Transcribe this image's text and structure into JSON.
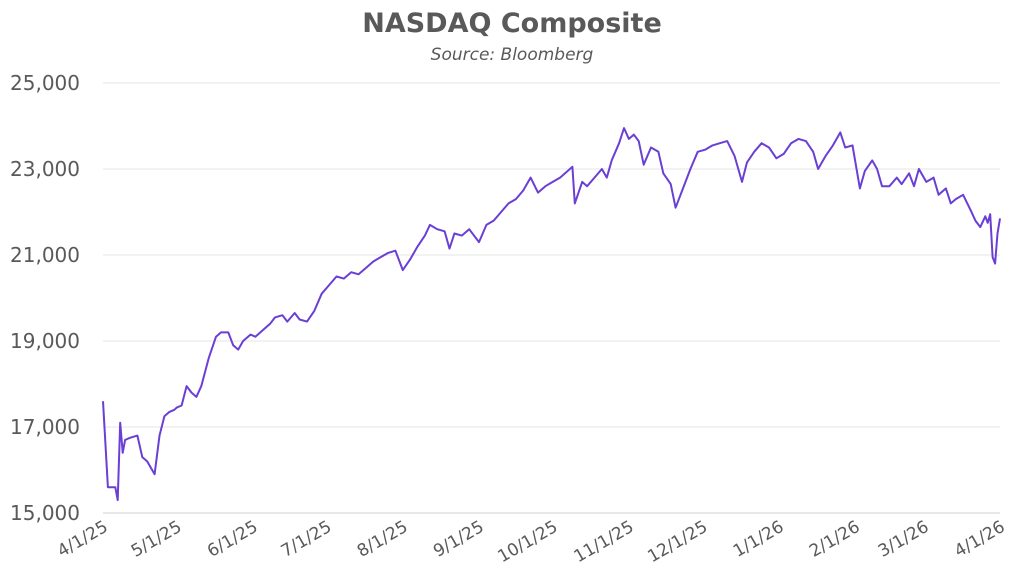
{
  "chart_data": {
    "type": "line",
    "title": "NASDAQ Composite",
    "subtitle": "Source: Bloomberg",
    "xlabel": "",
    "ylabel": "",
    "ylim": [
      15000,
      25000
    ],
    "yticks": [
      15000,
      17000,
      19000,
      21000,
      23000,
      25000
    ],
    "ytick_labels": [
      "15,000",
      "17,000",
      "19,000",
      "21,000",
      "23,000",
      "25,000"
    ],
    "xlim": [
      "2025-04-01",
      "2026-04-01"
    ],
    "xticks": [
      "2025-04-01",
      "2025-05-01",
      "2025-06-01",
      "2025-07-01",
      "2025-08-01",
      "2025-09-01",
      "2025-10-01",
      "2025-11-01",
      "2025-12-01",
      "2026-01-01",
      "2026-02-01",
      "2026-03-01",
      "2026-04-01"
    ],
    "xtick_labels": [
      "4/1/25",
      "5/1/25",
      "6/1/25",
      "7/1/25",
      "8/1/25",
      "9/1/25",
      "10/1/25",
      "11/1/25",
      "12/1/25",
      "1/1/26",
      "2/1/26",
      "3/1/26",
      "4/1/26"
    ],
    "grid": true,
    "line_color": "#6A3FD4",
    "series": [
      {
        "name": "",
        "points": [
          [
            "2025-04-01",
            17600
          ],
          [
            "2025-04-03",
            15600
          ],
          [
            "2025-04-04",
            15600
          ],
          [
            "2025-04-06",
            15600
          ],
          [
            "2025-04-07",
            15300
          ],
          [
            "2025-04-08",
            17100
          ],
          [
            "2025-04-09",
            16400
          ],
          [
            "2025-04-10",
            16700
          ],
          [
            "2025-04-12",
            16750
          ],
          [
            "2025-04-15",
            16800
          ],
          [
            "2025-04-17",
            16300
          ],
          [
            "2025-04-19",
            16200
          ],
          [
            "2025-04-22",
            15900
          ],
          [
            "2025-04-24",
            16800
          ],
          [
            "2025-04-26",
            17250
          ],
          [
            "2025-04-28",
            17350
          ],
          [
            "2025-04-30",
            17400
          ],
          [
            "2025-05-01",
            17450
          ],
          [
            "2025-05-03",
            17500
          ],
          [
            "2025-05-05",
            17950
          ],
          [
            "2025-05-07",
            17800
          ],
          [
            "2025-05-09",
            17700
          ],
          [
            "2025-05-11",
            17950
          ],
          [
            "2025-05-14",
            18600
          ],
          [
            "2025-05-17",
            19100
          ],
          [
            "2025-05-19",
            19200
          ],
          [
            "2025-05-22",
            19200
          ],
          [
            "2025-05-24",
            18900
          ],
          [
            "2025-05-26",
            18800
          ],
          [
            "2025-05-28",
            19000
          ],
          [
            "2025-05-31",
            19150
          ],
          [
            "2025-06-02",
            19100
          ],
          [
            "2025-06-05",
            19250
          ],
          [
            "2025-06-08",
            19400
          ],
          [
            "2025-06-10",
            19550
          ],
          [
            "2025-06-13",
            19600
          ],
          [
            "2025-06-15",
            19450
          ],
          [
            "2025-06-18",
            19650
          ],
          [
            "2025-06-20",
            19500
          ],
          [
            "2025-06-23",
            19450
          ],
          [
            "2025-06-26",
            19700
          ],
          [
            "2025-06-29",
            20100
          ],
          [
            "2025-07-02",
            20300
          ],
          [
            "2025-07-05",
            20500
          ],
          [
            "2025-07-08",
            20450
          ],
          [
            "2025-07-11",
            20600
          ],
          [
            "2025-07-14",
            20550
          ],
          [
            "2025-07-17",
            20700
          ],
          [
            "2025-07-20",
            20850
          ],
          [
            "2025-07-23",
            20950
          ],
          [
            "2025-07-26",
            21050
          ],
          [
            "2025-07-29",
            21100
          ],
          [
            "2025-08-01",
            20650
          ],
          [
            "2025-08-04",
            20900
          ],
          [
            "2025-08-07",
            21200
          ],
          [
            "2025-08-10",
            21450
          ],
          [
            "2025-08-12",
            21700
          ],
          [
            "2025-08-15",
            21600
          ],
          [
            "2025-08-18",
            21550
          ],
          [
            "2025-08-20",
            21150
          ],
          [
            "2025-08-22",
            21500
          ],
          [
            "2025-08-25",
            21450
          ],
          [
            "2025-08-28",
            21600
          ],
          [
            "2025-09-01",
            21300
          ],
          [
            "2025-09-04",
            21700
          ],
          [
            "2025-09-07",
            21800
          ],
          [
            "2025-09-10",
            22000
          ],
          [
            "2025-09-13",
            22200
          ],
          [
            "2025-09-16",
            22300
          ],
          [
            "2025-09-19",
            22500
          ],
          [
            "2025-09-22",
            22800
          ],
          [
            "2025-09-25",
            22450
          ],
          [
            "2025-09-28",
            22600
          ],
          [
            "2025-10-01",
            22700
          ],
          [
            "2025-10-04",
            22800
          ],
          [
            "2025-10-07",
            22950
          ],
          [
            "2025-10-09",
            23050
          ],
          [
            "2025-10-10",
            22200
          ],
          [
            "2025-10-13",
            22700
          ],
          [
            "2025-10-15",
            22600
          ],
          [
            "2025-10-18",
            22800
          ],
          [
            "2025-10-21",
            23000
          ],
          [
            "2025-10-23",
            22800
          ],
          [
            "2025-10-25",
            23200
          ],
          [
            "2025-10-28",
            23600
          ],
          [
            "2025-10-30",
            23950
          ],
          [
            "2025-11-01",
            23700
          ],
          [
            "2025-11-03",
            23800
          ],
          [
            "2025-11-05",
            23650
          ],
          [
            "2025-11-07",
            23100
          ],
          [
            "2025-11-10",
            23500
          ],
          [
            "2025-11-13",
            23400
          ],
          [
            "2025-11-15",
            22900
          ],
          [
            "2025-11-18",
            22650
          ],
          [
            "2025-11-20",
            22100
          ],
          [
            "2025-11-23",
            22550
          ],
          [
            "2025-11-26",
            23000
          ],
          [
            "2025-11-29",
            23400
          ],
          [
            "2025-12-02",
            23450
          ],
          [
            "2025-12-05",
            23550
          ],
          [
            "2025-12-08",
            23600
          ],
          [
            "2025-12-11",
            23650
          ],
          [
            "2025-12-14",
            23300
          ],
          [
            "2025-12-17",
            22700
          ],
          [
            "2025-12-19",
            23150
          ],
          [
            "2025-12-22",
            23400
          ],
          [
            "2025-12-25",
            23600
          ],
          [
            "2025-12-28",
            23500
          ],
          [
            "2025-12-31",
            23250
          ],
          [
            "2026-01-03",
            23350
          ],
          [
            "2026-01-06",
            23600
          ],
          [
            "2026-01-09",
            23700
          ],
          [
            "2026-01-12",
            23650
          ],
          [
            "2026-01-15",
            23400
          ],
          [
            "2026-01-17",
            23000
          ],
          [
            "2026-01-20",
            23300
          ],
          [
            "2026-01-23",
            23550
          ],
          [
            "2026-01-26",
            23850
          ],
          [
            "2026-01-28",
            23500
          ],
          [
            "2026-01-31",
            23550
          ],
          [
            "2026-02-03",
            22550
          ],
          [
            "2026-02-05",
            22950
          ],
          [
            "2026-02-08",
            23200
          ],
          [
            "2026-02-10",
            23000
          ],
          [
            "2026-02-12",
            22600
          ],
          [
            "2026-02-15",
            22600
          ],
          [
            "2026-02-18",
            22800
          ],
          [
            "2026-02-20",
            22650
          ],
          [
            "2026-02-23",
            22900
          ],
          [
            "2026-02-25",
            22600
          ],
          [
            "2026-02-27",
            23000
          ],
          [
            "2026-03-02",
            22700
          ],
          [
            "2026-03-05",
            22800
          ],
          [
            "2026-03-07",
            22400
          ],
          [
            "2026-03-10",
            22550
          ],
          [
            "2026-03-12",
            22200
          ],
          [
            "2026-03-14",
            22300
          ],
          [
            "2026-03-17",
            22400
          ],
          [
            "2026-03-20",
            22050
          ],
          [
            "2026-03-22",
            21800
          ],
          [
            "2026-03-24",
            21650
          ],
          [
            "2026-03-26",
            21900
          ],
          [
            "2026-03-27",
            21750
          ],
          [
            "2026-03-28",
            21950
          ],
          [
            "2026-03-29",
            20950
          ],
          [
            "2026-03-30",
            20800
          ],
          [
            "2026-03-31",
            21500
          ],
          [
            "2026-04-01",
            21850
          ]
        ]
      }
    ]
  }
}
